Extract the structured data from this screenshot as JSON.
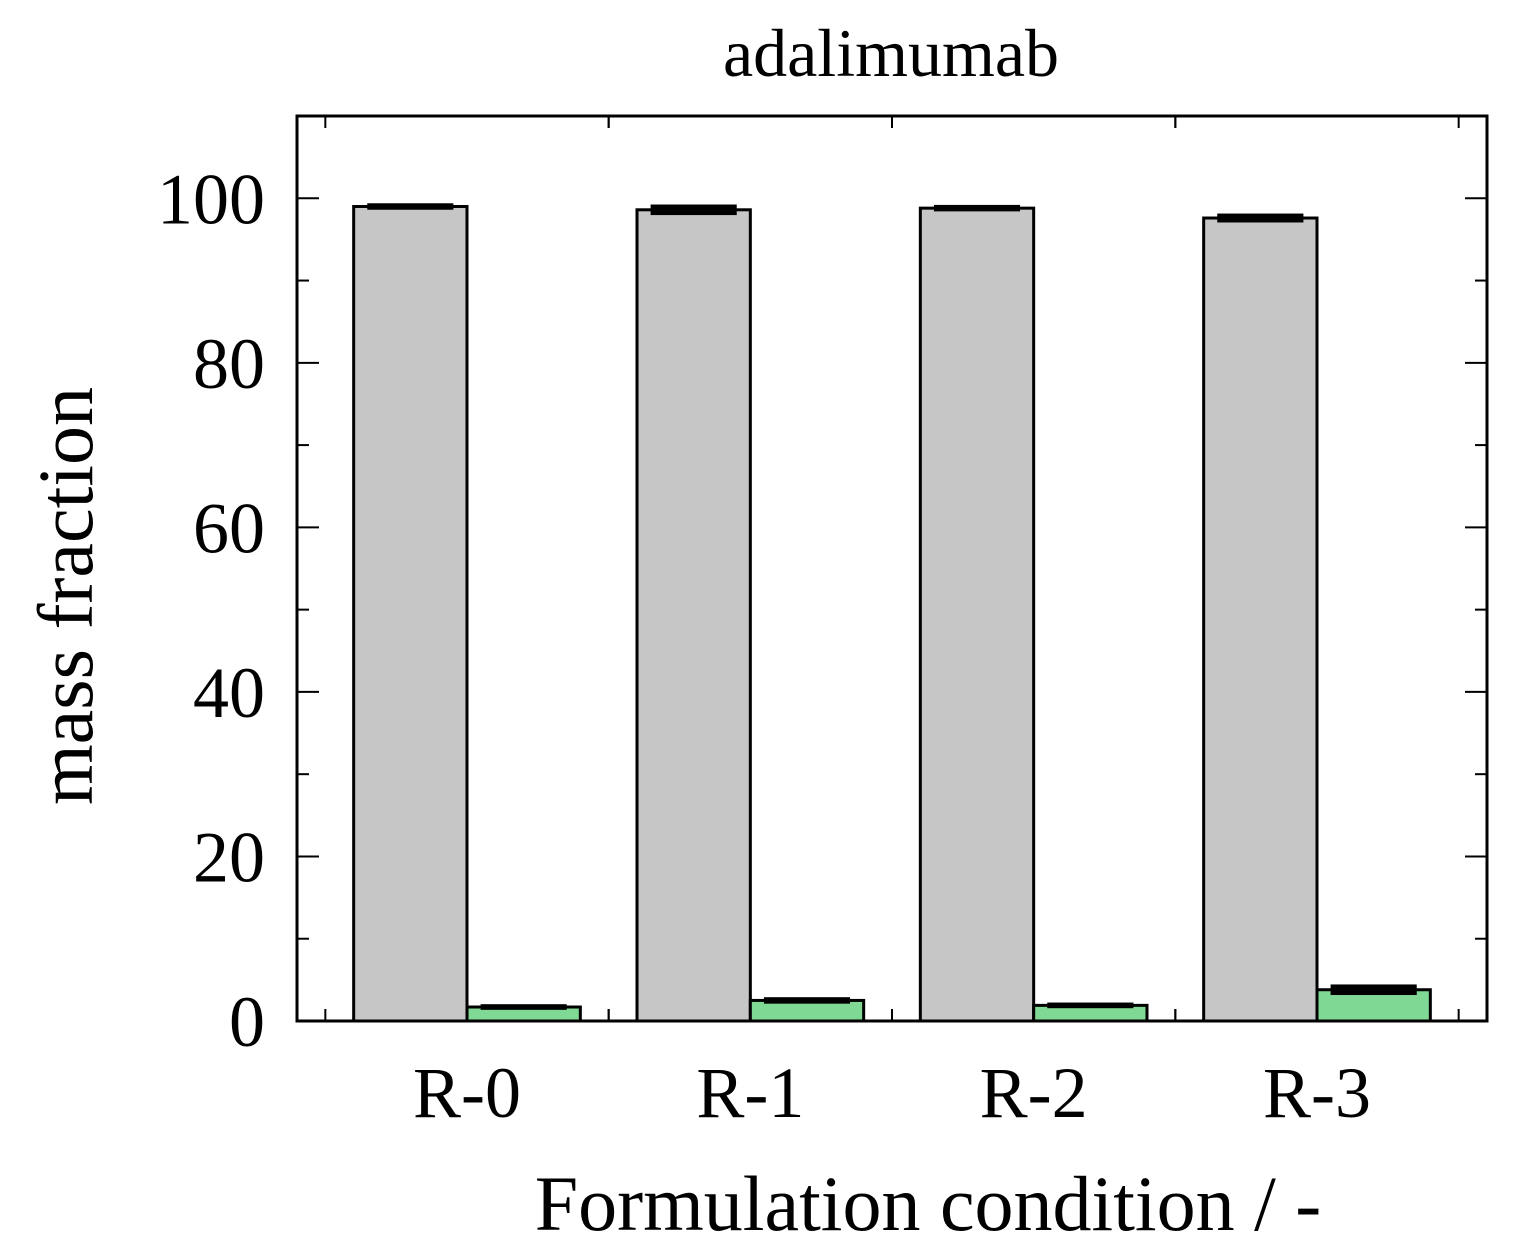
{
  "chart_data": {
    "type": "bar",
    "title": "adalimumab",
    "xlabel": "Formulation condition / -",
    "ylabel": "mass fraction",
    "categories": [
      "R-0",
      "R-1",
      "R-2",
      "R-3"
    ],
    "series": [
      {
        "values": [
          99.0,
          98.6,
          98.8,
          97.6
        ],
        "errors": [
          0.15,
          0.4,
          0.15,
          0.3
        ],
        "color": "#c6c6c6"
      },
      {
        "values": [
          1.7,
          2.5,
          1.9,
          3.8
        ],
        "errors": [
          0.1,
          0.15,
          0.1,
          0.4
        ],
        "color": "#7fd893"
      }
    ],
    "ylim": [
      0,
      110
    ],
    "yticks": [
      0,
      20,
      40,
      60,
      80,
      100
    ],
    "grid": false,
    "legend": "none"
  }
}
